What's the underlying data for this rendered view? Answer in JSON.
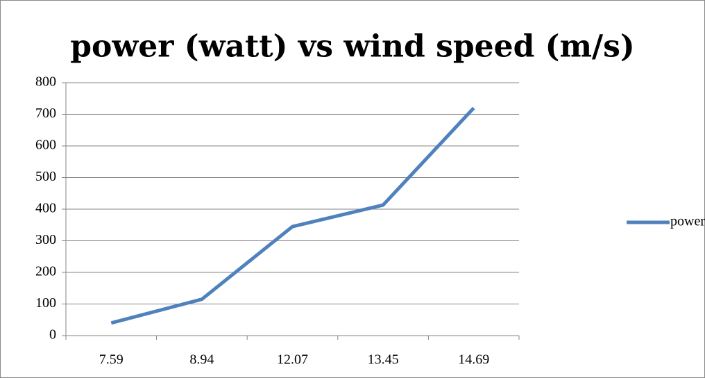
{
  "chart_data": {
    "type": "line",
    "title": "power (watt) vs wind speed (m/s)",
    "categories": [
      "7.59",
      "8.94",
      "12.07",
      "13.45",
      "14.69"
    ],
    "series": [
      {
        "name": "power (watt)",
        "color": "#4f81bd",
        "values": [
          40,
          115,
          345,
          413,
          720
        ]
      }
    ],
    "ylim": [
      0,
      800
    ],
    "yticks": [
      0,
      100,
      200,
      300,
      400,
      500,
      600,
      700,
      800
    ],
    "grid": true,
    "legend": "right"
  }
}
